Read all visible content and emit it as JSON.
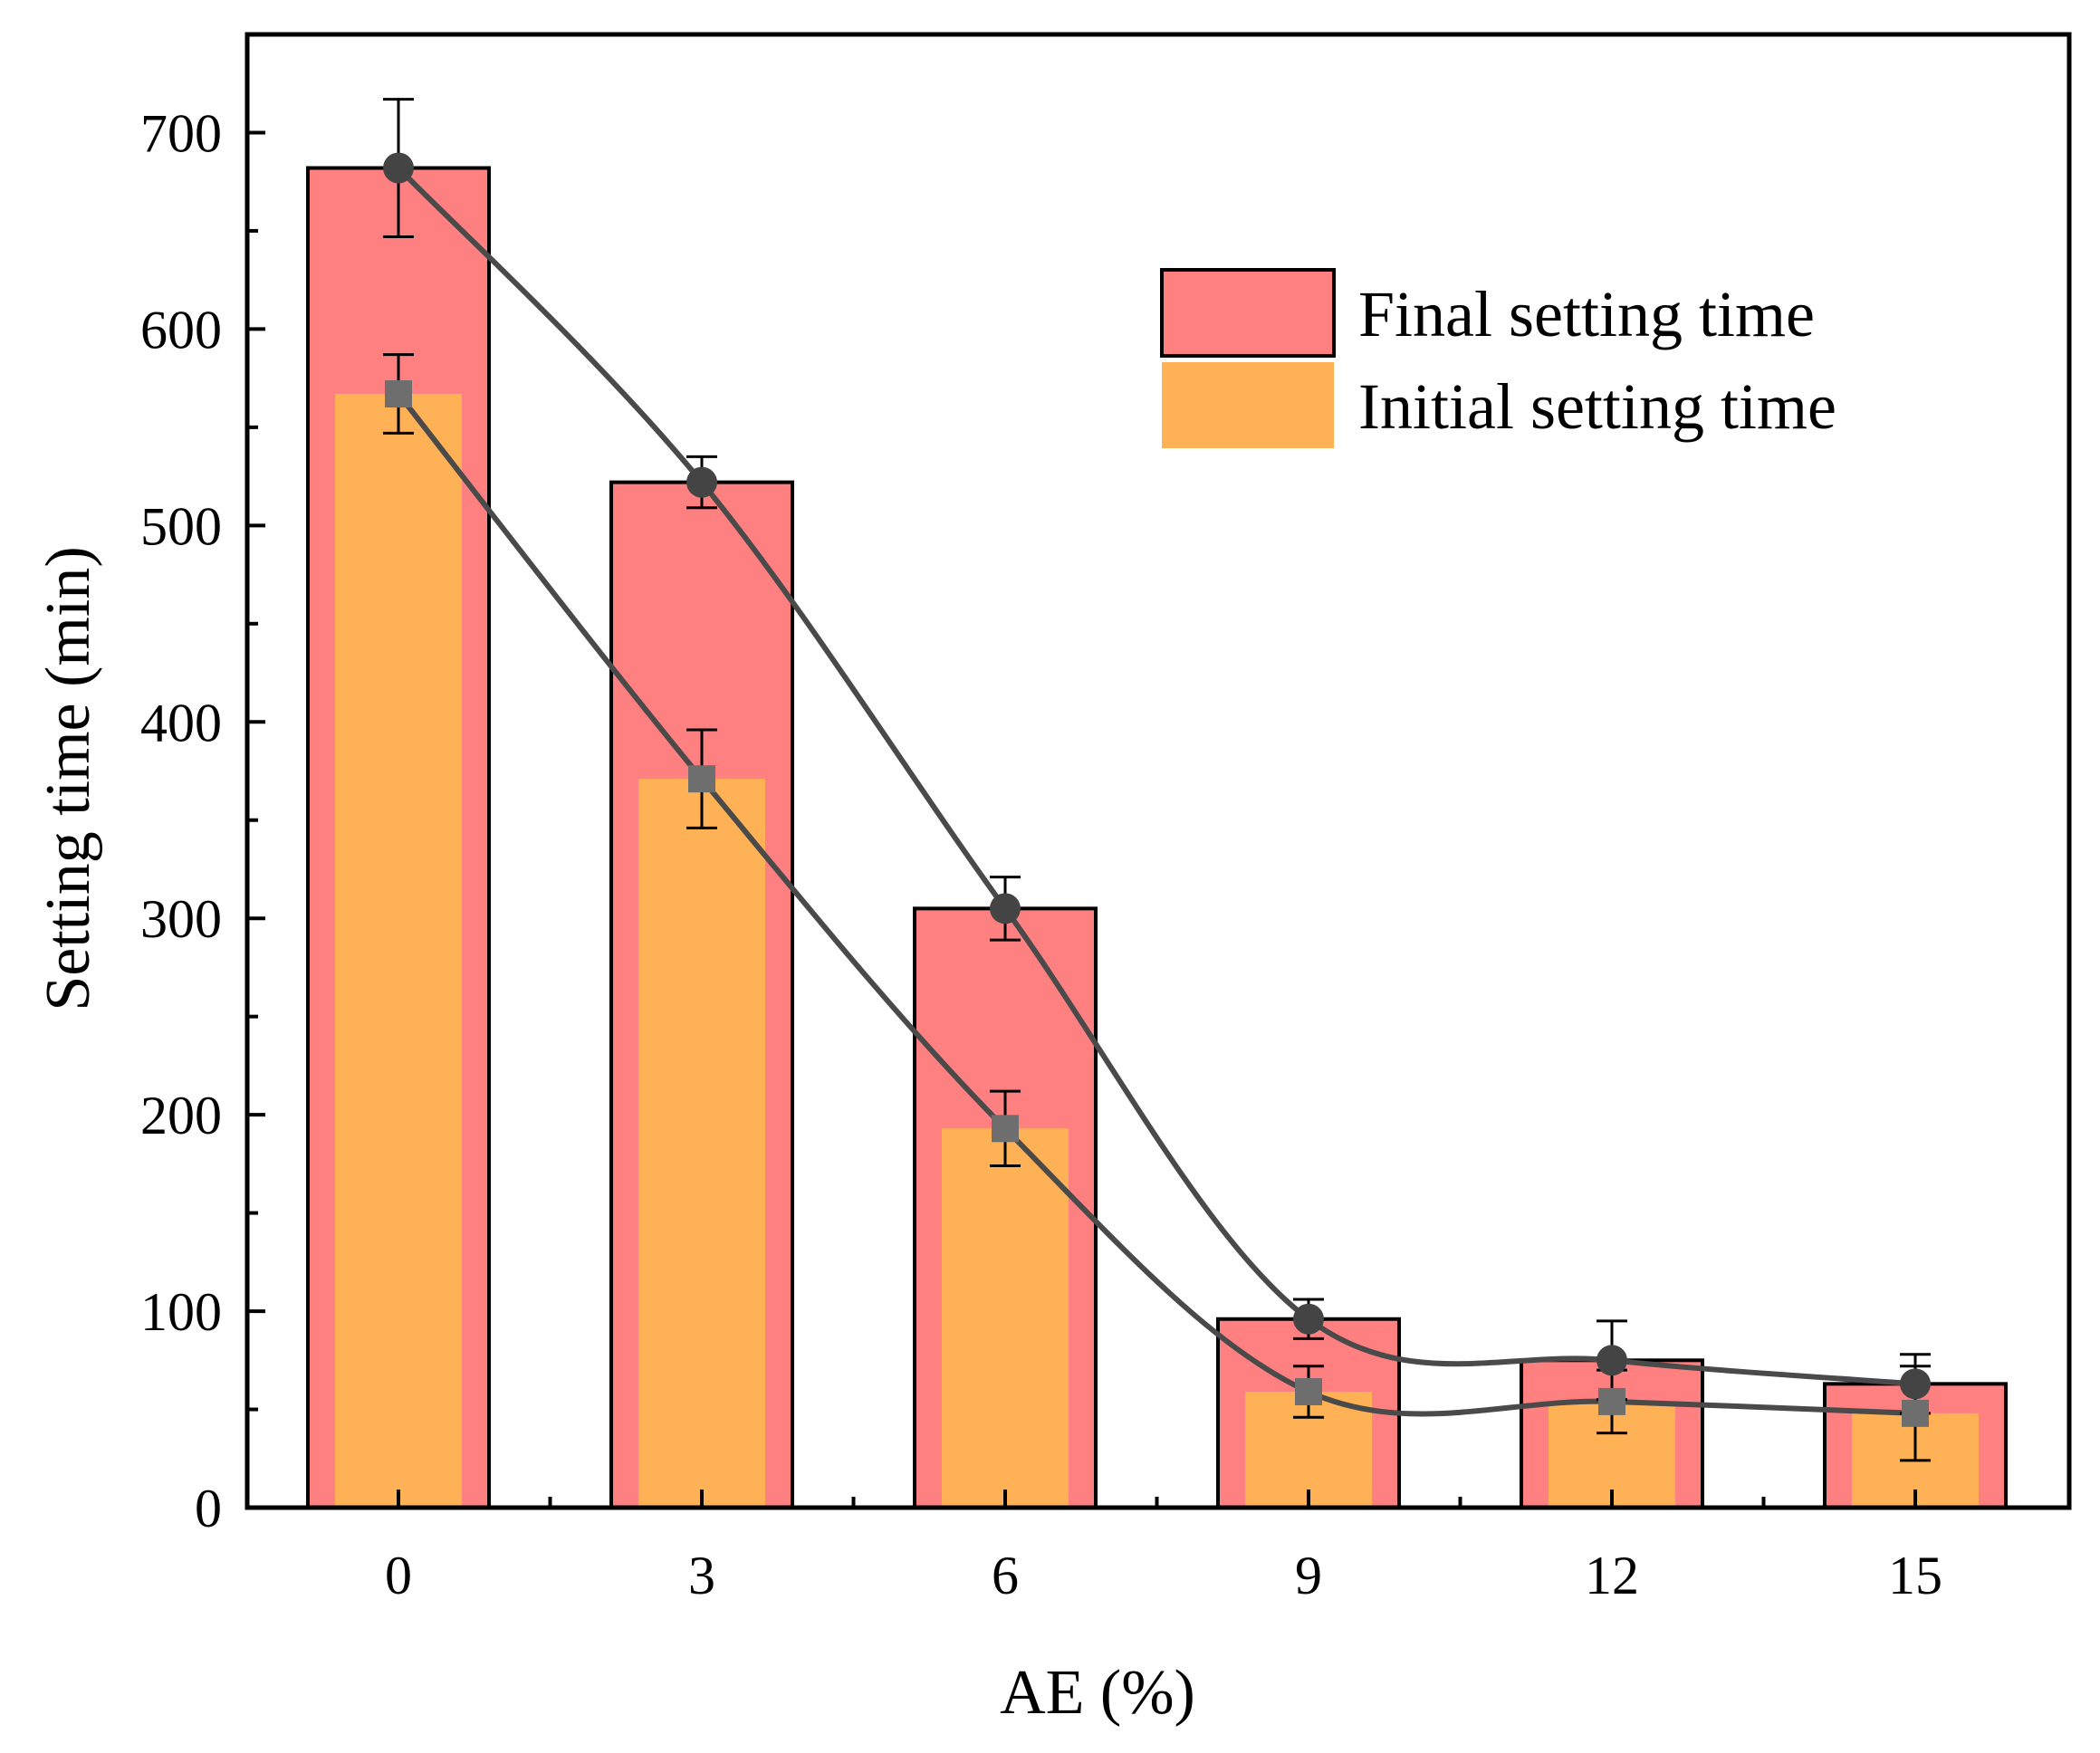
{
  "chart_data": {
    "type": "bar",
    "title": "",
    "xlabel": "AE (%)",
    "ylabel": "Setting time (min)",
    "categories": [
      "0",
      "3",
      "6",
      "9",
      "12",
      "15"
    ],
    "x": [
      0,
      3,
      6,
      9,
      12,
      15
    ],
    "ylim": [
      0,
      750
    ],
    "yticks": [
      0,
      100,
      200,
      300,
      400,
      500,
      600,
      700
    ],
    "grid": false,
    "legend_position": "top-right",
    "series": [
      {
        "name": "Final setting time",
        "color": "#FF8080",
        "line_color": "#4A4A4A",
        "marker": "circle",
        "values": [
          682,
          522,
          305,
          96,
          75,
          63
        ],
        "error": [
          35,
          13,
          16,
          10,
          20,
          15
        ]
      },
      {
        "name": "Initial setting time",
        "color": "#FFB255",
        "line_color": "#4A4A4A",
        "marker": "square",
        "values": [
          567,
          371,
          193,
          59,
          54,
          48
        ],
        "error": [
          20,
          25,
          19,
          13,
          16,
          24
        ]
      }
    ]
  }
}
